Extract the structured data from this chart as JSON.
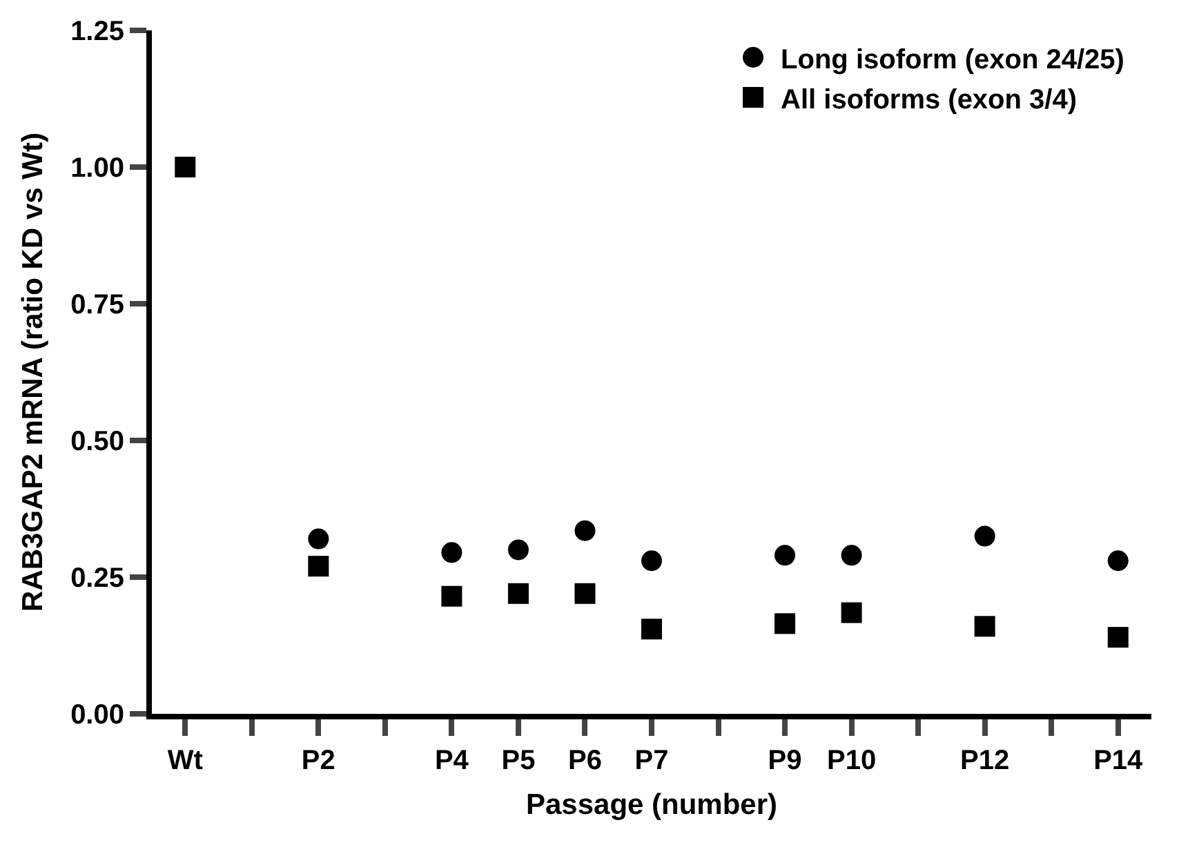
{
  "chart_data": {
    "type": "scatter",
    "xlabel": "Passage (number)",
    "ylabel": "RAB3GAP2 mRNA (ratio KD vs Wt)",
    "categories": [
      "Wt",
      null,
      "P2",
      null,
      "P4",
      "P5",
      "P6",
      "P7",
      null,
      "P9",
      "P10",
      null,
      "P12",
      null,
      "P14"
    ],
    "series": [
      {
        "name": "Long isoform (exon 24/25)",
        "color": "#000000",
        "marker": "circle",
        "values": [
          null,
          null,
          0.32,
          null,
          0.295,
          0.3,
          0.335,
          0.28,
          null,
          0.29,
          0.29,
          null,
          0.325,
          null,
          0.28
        ]
      },
      {
        "name": "All isoforms (exon 3/4)",
        "color": "#000000",
        "marker": "square",
        "values": [
          1.0,
          null,
          0.27,
          null,
          0.215,
          0.22,
          0.22,
          0.155,
          null,
          0.165,
          0.185,
          null,
          0.16,
          null,
          0.14
        ]
      }
    ],
    "ylim": [
      0,
      1.25
    ],
    "yticks": [
      {
        "value": 0,
        "label": "0.00"
      },
      {
        "value": 0.25,
        "label": "0.25"
      },
      {
        "value": 0.5,
        "label": "0.50"
      },
      {
        "value": 0.75,
        "label": "0.75"
      },
      {
        "value": 1,
        "label": "1.00"
      },
      1.25
    ],
    "legend": "top right"
  }
}
